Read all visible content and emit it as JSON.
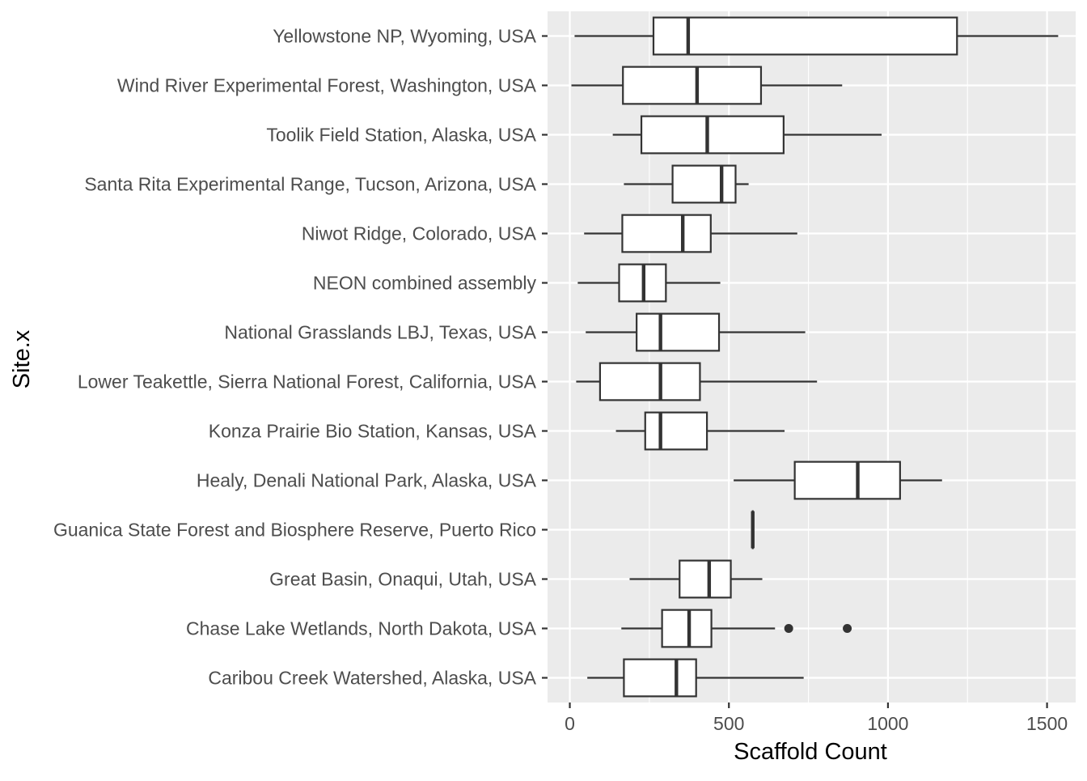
{
  "chart_data": {
    "type": "boxplot",
    "orientation": "horizontal",
    "xlabel": "Scaffold Count",
    "ylabel": "Site.x",
    "xlim": [
      -70,
      1590
    ],
    "xticks": [
      0,
      500,
      1000,
      1500
    ],
    "xtick_labels": [
      "0",
      "500",
      "1000",
      "1500"
    ],
    "grid": true,
    "colors": {
      "panel_background": "#EBEBEB",
      "grid_major": "#FFFFFF",
      "box_fill": "#FFFFFF",
      "box_stroke": "#333333",
      "axis_text": "#4D4D4D",
      "title_text": "#000000"
    },
    "categories": [
      "Yellowstone NP, Wyoming, USA",
      "Wind River Experimental Forest, Washington, USA",
      "Toolik Field Station, Alaska, USA",
      "Santa Rita Experimental Range, Tucson, Arizona, USA",
      "Niwot Ridge, Colorado, USA",
      "NEON combined assembly",
      "National Grasslands LBJ, Texas, USA",
      "Lower Teakettle, Sierra National Forest, California, USA",
      "Konza Prairie Bio Station, Kansas, USA",
      "Healy, Denali National Park, Alaska, USA",
      "Guanica State Forest and Biosphere Reserve, Puerto Rico",
      "Great Basin, Onaqui, Utah, USA",
      "Chase Lake Wetlands, North Dakota, USA",
      "Caribou Creek Watershed, Alaska, USA"
    ],
    "boxes": [
      {
        "min": 15,
        "q1": 263,
        "median": 372,
        "q3": 1217,
        "max": 1535,
        "outliers": []
      },
      {
        "min": 5,
        "q1": 167,
        "median": 400,
        "q3": 601,
        "max": 856,
        "outliers": []
      },
      {
        "min": 135,
        "q1": 225,
        "median": 432,
        "q3": 672,
        "max": 980,
        "outliers": []
      },
      {
        "min": 170,
        "q1": 323,
        "median": 477,
        "q3": 521,
        "max": 562,
        "outliers": []
      },
      {
        "min": 45,
        "q1": 165,
        "median": 355,
        "q3": 443,
        "max": 715,
        "outliers": []
      },
      {
        "min": 25,
        "q1": 155,
        "median": 232,
        "q3": 302,
        "max": 473,
        "outliers": []
      },
      {
        "min": 50,
        "q1": 210,
        "median": 285,
        "q3": 469,
        "max": 740,
        "outliers": []
      },
      {
        "min": 20,
        "q1": 95,
        "median": 285,
        "q3": 409,
        "max": 777,
        "outliers": []
      },
      {
        "min": 145,
        "q1": 237,
        "median": 285,
        "q3": 431,
        "max": 675,
        "outliers": []
      },
      {
        "min": 515,
        "q1": 707,
        "median": 905,
        "q3": 1038,
        "max": 1170,
        "outliers": []
      },
      {
        "min": 575,
        "q1": 575,
        "median": 575,
        "q3": 575,
        "max": 575,
        "outliers": []
      },
      {
        "min": 188,
        "q1": 345,
        "median": 438,
        "q3": 506,
        "max": 605,
        "outliers": []
      },
      {
        "min": 162,
        "q1": 290,
        "median": 375,
        "q3": 445,
        "max": 645,
        "outliers": [
          688,
          872
        ]
      },
      {
        "min": 55,
        "q1": 170,
        "median": 335,
        "q3": 397,
        "max": 735,
        "outliers": []
      }
    ]
  }
}
